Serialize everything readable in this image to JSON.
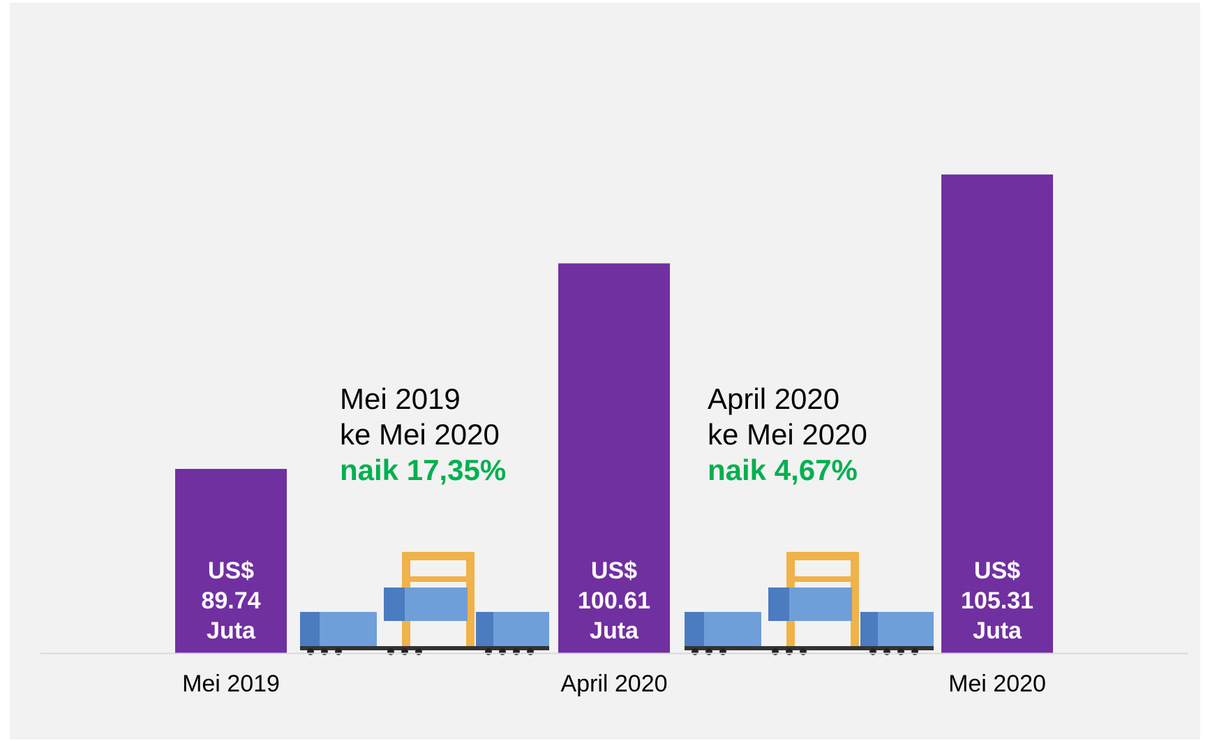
{
  "chart_data": {
    "type": "bar",
    "categories": [
      "Mei 2019",
      "April 2020",
      "Mei 2020"
    ],
    "values": [
      89.74,
      100.61,
      105.31
    ],
    "value_labels": [
      "US$\n89.74\nJuta",
      "US$\n100.61\nJuta",
      "US$\n105.31\nJuta"
    ],
    "color": "#7030a0",
    "ylim": [
      80,
      110
    ],
    "annotations": [
      {
        "lines": [
          "Mei 2019",
          "ke Mei 2020"
        ],
        "highlight": "naik 17,35%"
      },
      {
        "lines": [
          "April 2020",
          "ke Mei 2020"
        ],
        "highlight": "naik 4,67%"
      }
    ],
    "highlight_color": "#00b050"
  }
}
